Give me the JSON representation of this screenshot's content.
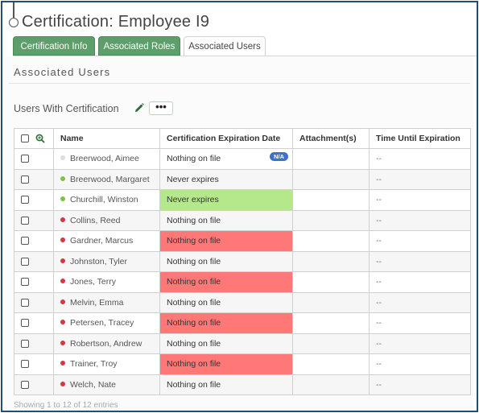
{
  "header": {
    "title": "Certification: Employee I9"
  },
  "tabs": [
    {
      "label": "Certification Info"
    },
    {
      "label": "Associated Roles"
    },
    {
      "label": "Associated Users"
    }
  ],
  "section": {
    "title": "Associated Users"
  },
  "subsection": {
    "title": "Users With Certification",
    "more_label": "•••"
  },
  "table": {
    "columns": [
      "Name",
      "Certification Expiration Date",
      "Attachment(s)",
      "Time Until Expiration"
    ],
    "rows": [
      {
        "name": "Breerwood, Aimee",
        "status": "grey",
        "expiration": "Nothing on file",
        "badge": "N/A",
        "attachment": "",
        "time": "--"
      },
      {
        "name": "Breerwood, Margaret",
        "status": "green",
        "expiration": "Never expires",
        "attachment": "",
        "time": "--"
      },
      {
        "name": "Churchill, Winston",
        "status": "green",
        "expiration": "Never expires",
        "attachment": "",
        "time": "--"
      },
      {
        "name": "Collins, Reed",
        "status": "red",
        "expiration": "Nothing on file",
        "attachment": "",
        "time": "--"
      },
      {
        "name": "Gardner, Marcus",
        "status": "red",
        "expiration": "Nothing on file",
        "attachment": "",
        "time": "--"
      },
      {
        "name": "Johnston, Tyler",
        "status": "red",
        "expiration": "Nothing on file",
        "attachment": "",
        "time": "--"
      },
      {
        "name": "Jones, Terry",
        "status": "red",
        "expiration": "Nothing on file",
        "attachment": "",
        "time": "--"
      },
      {
        "name": "Melvin, Emma",
        "status": "red",
        "expiration": "Nothing on file",
        "attachment": "",
        "time": "--"
      },
      {
        "name": "Petersen, Tracey",
        "status": "red",
        "expiration": "Nothing on file",
        "attachment": "",
        "time": "--"
      },
      {
        "name": "Robertson, Andrew",
        "status": "red",
        "expiration": "Nothing on file",
        "attachment": "",
        "time": "--"
      },
      {
        "name": "Trainer, Troy",
        "status": "red",
        "expiration": "Nothing on file",
        "attachment": "",
        "time": "--"
      },
      {
        "name": "Welch, Nate",
        "status": "red",
        "expiration": "Nothing on file",
        "attachment": "",
        "time": "--"
      }
    ]
  },
  "footer": {
    "text": "Showing 1 to 12 of 12 entries"
  },
  "colors": {
    "tab_green": "#5e9e6a",
    "status_green": "#7cc43f",
    "status_red": "#d9363e",
    "status_none": "#dddddd",
    "expiry_ok": "#c6f2a3",
    "expiry_missing": "#ff8a8a",
    "badge_blue": "#4170c9"
  },
  "icons": {
    "edit": "pencil-icon",
    "select": "checkbox-icon",
    "zoom": "zoom-in-icon",
    "status": "status-dot-icon"
  }
}
